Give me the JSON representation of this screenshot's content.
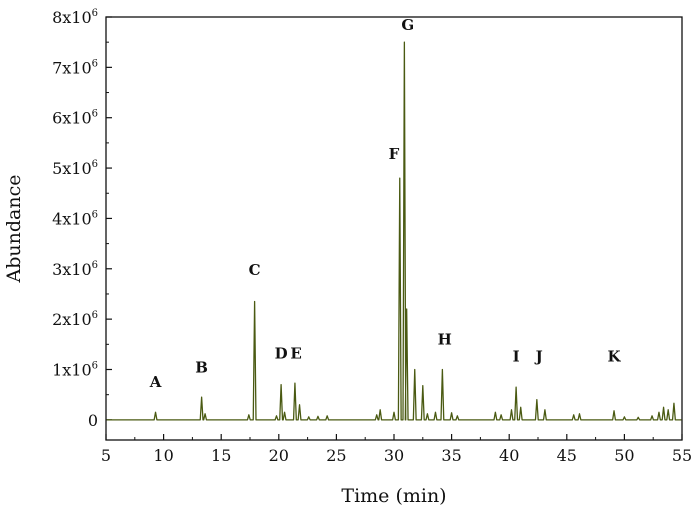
{
  "chart_data": {
    "type": "line",
    "title": "",
    "xlabel": "Time (min)",
    "ylabel": "Abundance",
    "xlim": [
      5,
      55
    ],
    "ylim": [
      -400000,
      8000000
    ],
    "x_ticks": [
      5,
      10,
      15,
      20,
      25,
      30,
      35,
      40,
      45,
      50,
      55
    ],
    "x_tick_labels": [
      "5",
      "10",
      "15",
      "20",
      "25",
      "30",
      "35",
      "40",
      "45",
      "50",
      "55"
    ],
    "y_ticks": [
      0,
      1000000,
      2000000,
      3000000,
      4000000,
      5000000,
      6000000,
      7000000,
      8000000
    ],
    "y_tick_labels": [
      {
        "base": "0",
        "exp": ""
      },
      {
        "base": "1x10",
        "exp": "6"
      },
      {
        "base": "2x10",
        "exp": "6"
      },
      {
        "base": "3x10",
        "exp": "6"
      },
      {
        "base": "4x10",
        "exp": "6"
      },
      {
        "base": "5x10",
        "exp": "6"
      },
      {
        "base": "6x10",
        "exp": "6"
      },
      {
        "base": "7x10",
        "exp": "6"
      },
      {
        "base": "8x10",
        "exp": "6"
      }
    ],
    "grid": false,
    "line_color": "#4a5a12",
    "series": [
      {
        "peaks": [
          [
            9.3,
            150000
          ],
          [
            13.3,
            450000
          ],
          [
            13.6,
            120000
          ],
          [
            17.4,
            100000
          ],
          [
            17.9,
            2350000
          ],
          [
            19.8,
            80000
          ],
          [
            20.2,
            700000
          ],
          [
            20.5,
            150000
          ],
          [
            21.4,
            730000
          ],
          [
            21.8,
            300000
          ],
          [
            22.6,
            60000
          ],
          [
            23.4,
            70000
          ],
          [
            24.2,
            80000
          ],
          [
            28.5,
            100000
          ],
          [
            28.8,
            200000
          ],
          [
            30.0,
            150000
          ],
          [
            30.5,
            4800000
          ],
          [
            30.9,
            7500000
          ],
          [
            31.1,
            2200000
          ],
          [
            31.8,
            1000000
          ],
          [
            32.5,
            680000
          ],
          [
            32.9,
            120000
          ],
          [
            33.6,
            150000
          ],
          [
            34.2,
            1000000
          ],
          [
            35.0,
            140000
          ],
          [
            35.5,
            80000
          ],
          [
            38.8,
            150000
          ],
          [
            39.3,
            100000
          ],
          [
            40.2,
            200000
          ],
          [
            40.6,
            650000
          ],
          [
            41.0,
            250000
          ],
          [
            42.4,
            400000
          ],
          [
            43.1,
            200000
          ],
          [
            45.6,
            100000
          ],
          [
            46.1,
            120000
          ],
          [
            49.1,
            180000
          ],
          [
            50.0,
            60000
          ],
          [
            51.2,
            50000
          ],
          [
            52.4,
            80000
          ],
          [
            53.0,
            150000
          ],
          [
            53.4,
            250000
          ],
          [
            53.8,
            200000
          ],
          [
            54.3,
            330000
          ]
        ]
      }
    ],
    "annotations": [
      {
        "label": "A",
        "x": 9.3,
        "y": 650000
      },
      {
        "label": "B",
        "x": 13.3,
        "y": 940000
      },
      {
        "label": "C",
        "x": 17.9,
        "y": 2880000
      },
      {
        "label": "D",
        "x": 20.2,
        "y": 1220000
      },
      {
        "label": "E",
        "x": 21.5,
        "y": 1220000
      },
      {
        "label": "F",
        "x": 30.0,
        "y": 5180000
      },
      {
        "label": "G",
        "x": 31.2,
        "y": 7740000
      },
      {
        "label": "H",
        "x": 34.4,
        "y": 1500000
      },
      {
        "label": "I",
        "x": 40.6,
        "y": 1160000
      },
      {
        "label": "J",
        "x": 42.6,
        "y": 1160000
      },
      {
        "label": "K",
        "x": 49.1,
        "y": 1160000
      }
    ]
  }
}
